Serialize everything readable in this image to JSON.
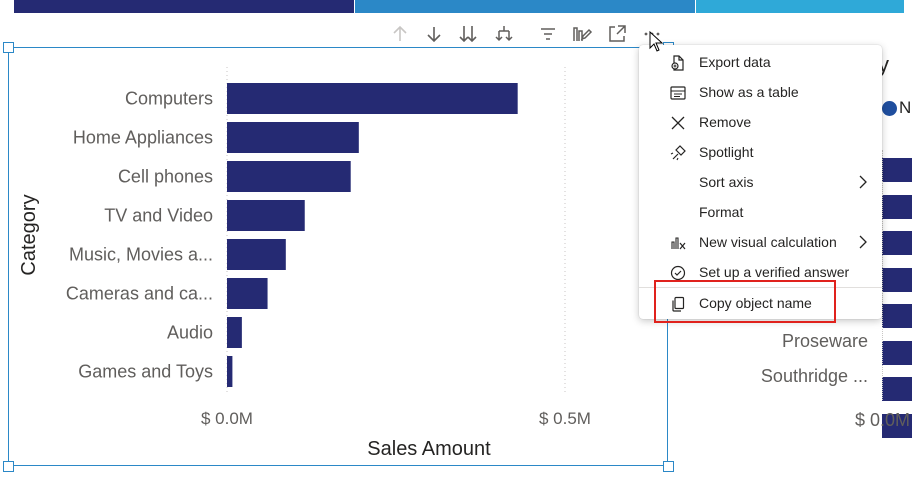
{
  "colors": {
    "bar": "#252a73",
    "selection": "#2b88c7",
    "highlight_box": "#e0221d",
    "strip": [
      "#252a73",
      "#2b88c7",
      "#2fa9d8"
    ]
  },
  "toolbar": {
    "icons": [
      "arrow-up-icon",
      "arrow-down-icon",
      "drill-all-down-icon",
      "expand-hierarchy-icon",
      "filter-icon",
      "visual-format-icon",
      "focus-mode-icon",
      "more-options-icon"
    ]
  },
  "chart_data": {
    "type": "bar",
    "orientation": "horizontal",
    "categories": [
      "Computers",
      "Home Appliances",
      "Cell phones",
      "TV and Video",
      "Music, Movies a...",
      "Cameras and ca...",
      "Audio",
      "Games and Toys"
    ],
    "values": [
      0.43,
      0.195,
      0.183,
      0.115,
      0.087,
      0.06,
      0.022,
      0.008
    ],
    "xlabel": "Sales Amount",
    "ylabel": "Category",
    "xlim": [
      0,
      0.65
    ],
    "xticks": [
      0,
      0.5
    ],
    "xtick_labels": [
      "$ 0.0M",
      "$ 0.5M"
    ],
    "grid": "vertical dotted"
  },
  "right_visual": {
    "title_fragment": "y",
    "legend_fragment": "N",
    "labels": [
      "Proseware",
      "Southridge ..."
    ],
    "axis_tick": "$ 0.0M",
    "bar_rows": 8
  },
  "menu": {
    "items": [
      {
        "label": "Export data",
        "icon": "export-data-icon"
      },
      {
        "label": "Show as a table",
        "icon": "table-icon"
      },
      {
        "label": "Remove",
        "icon": "close-icon"
      },
      {
        "label": "Spotlight",
        "icon": "spotlight-icon"
      },
      {
        "label": "Sort axis",
        "icon": "",
        "submenu": true
      },
      {
        "label": "Format",
        "icon": ""
      },
      {
        "label": "New visual calculation",
        "icon": "visual-calculation-icon",
        "submenu": true
      },
      {
        "label": "Set up a verified answer",
        "icon": "verified-answer-icon"
      },
      {
        "label": "Copy object name",
        "icon": "copy-icon"
      }
    ]
  }
}
